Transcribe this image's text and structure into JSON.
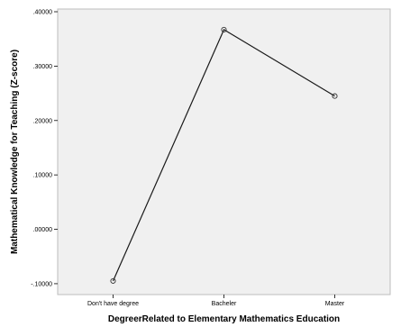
{
  "chart_data": {
    "type": "line",
    "categories": [
      "Don't have degree",
      "Bacheler",
      "Master"
    ],
    "values": [
      -0.095,
      0.367,
      0.245
    ],
    "xlabel": "DegreerRelated to Elementary Mathematics Education",
    "ylabel": "Mathematical Knowledge for Teaching (Z-score)",
    "yticks": [
      {
        "value": -0.1,
        "label": "-.10000"
      },
      {
        "value": 0.0,
        "label": ".00000"
      },
      {
        "value": 0.1,
        "label": ".10000"
      },
      {
        "value": 0.2,
        "label": ".20000"
      },
      {
        "value": 0.3,
        "label": ".30000"
      },
      {
        "value": 0.4,
        "label": ".40000"
      }
    ],
    "ylim": [
      -0.12,
      0.405
    ],
    "grid": false,
    "colors": {
      "line": "#1a1a1a",
      "marker": "#333333",
      "plot_background": "#f0f0f0",
      "frame": "#bdbdbd",
      "axis": "#000000"
    }
  }
}
